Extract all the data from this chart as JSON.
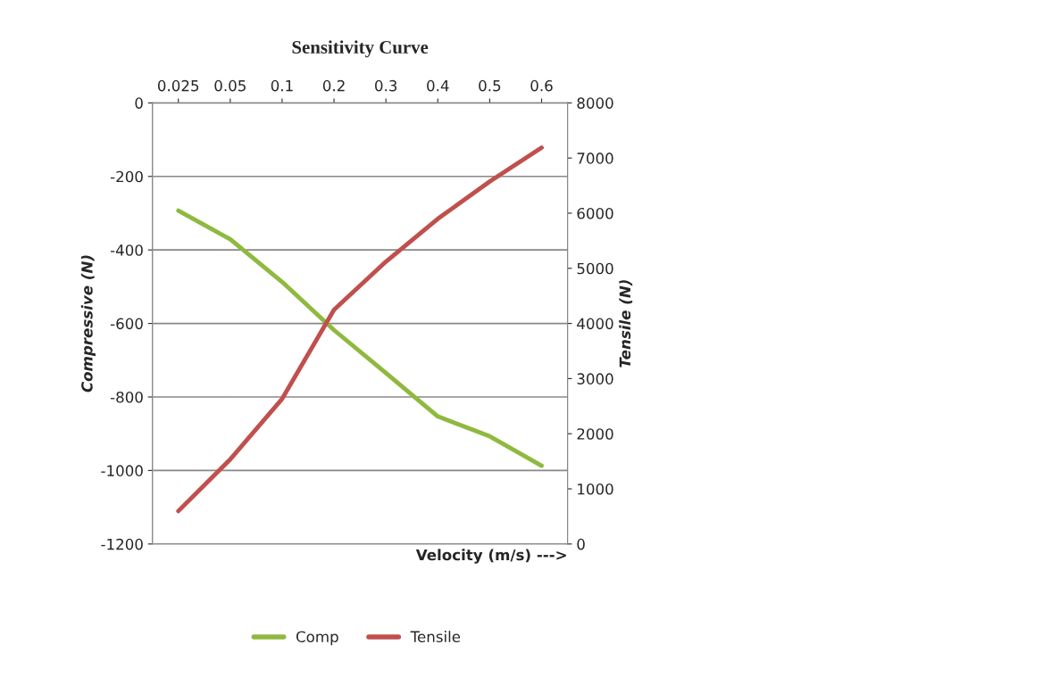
{
  "chart_data": {
    "type": "line",
    "title": "Sensitivity Curve",
    "xlabel": "Velocity (m/s) --->",
    "ylabel": "Compressive (N)",
    "y2label": "Tensile (N)",
    "categories": [
      "0.025",
      "0.05",
      "0.1",
      "0.2",
      "0.3",
      "0.4",
      "0.5",
      "0.6"
    ],
    "series": [
      {
        "name": "Comp",
        "color": "#8fb93f",
        "values": [
          -293,
          -371,
          -487,
          -618,
          -735,
          -853,
          -907,
          -987
        ]
      },
      {
        "name": "Tensile",
        "color": "#c0504d",
        "axis": "y2",
        "values": [
          598,
          1535,
          2633,
          4249,
          5121,
          5897,
          6575,
          7189
        ]
      }
    ],
    "ylim": [
      -1200,
      0
    ],
    "yticks": [
      -1200,
      -1000,
      -800,
      -600,
      -400,
      -200,
      0
    ],
    "y2lim": [
      0,
      8000
    ],
    "y2ticks": [
      0,
      1000,
      2000,
      3000,
      4000,
      5000,
      6000,
      7000,
      8000
    ],
    "grid": "y",
    "legend": "bottom",
    "line_style": "solid",
    "marker": "none"
  }
}
